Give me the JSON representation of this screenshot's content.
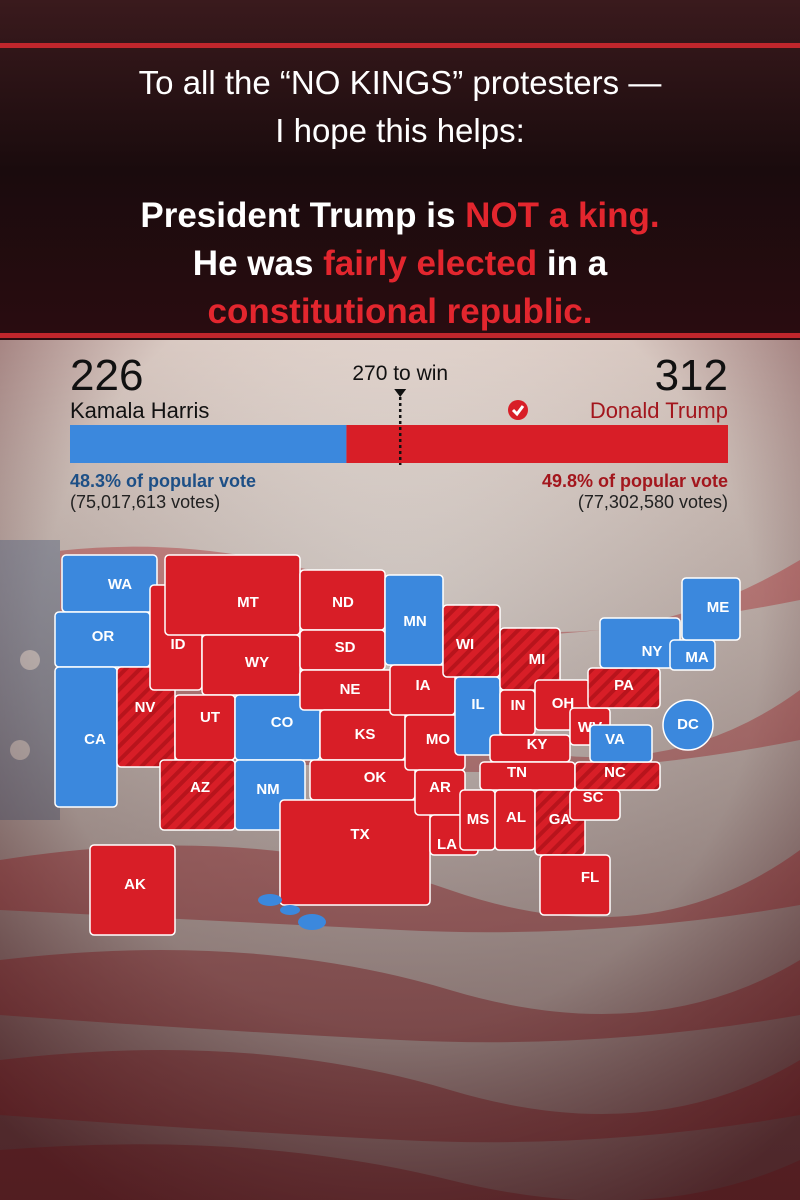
{
  "header": {
    "lines": [
      "To all the “NO KINGS” protesters —",
      "I hope this helps:"
    ]
  },
  "message": {
    "lines": [
      [
        {
          "text": "President Trump is ",
          "color": "#ffffff"
        },
        {
          "text": "NOT a king.",
          "color": "#e3262e"
        }
      ],
      [
        {
          "text": "He was ",
          "color": "#ffffff"
        },
        {
          "text": "fairly elected",
          "color": "#e3262e"
        },
        {
          "text": " in a",
          "color": "#ffffff"
        }
      ],
      [
        {
          "text": "constitutional republic.",
          "color": "#e3262e"
        }
      ]
    ]
  },
  "results": {
    "threshold": {
      "value": 270,
      "label": "270 to win"
    },
    "candidates": [
      {
        "name": "Kamala Harris",
        "electoral_votes": 226,
        "color": "#3b88dd",
        "text_color": "#1d4f86",
        "popular_vote": "48.3% of popular vote",
        "votes": "(75,017,613 votes)",
        "winner": false
      },
      {
        "name": "Donald Trump",
        "electoral_votes": 312,
        "color": "#d81e27",
        "text_color": "#a3161d",
        "popular_vote": "49.8% of popular vote",
        "votes": "(77,302,580 votes)",
        "winner": true
      }
    ]
  },
  "map": {
    "states": [
      {
        "label": "WA",
        "color": "#3b88dd"
      },
      {
        "label": "OR",
        "color": "#3b88dd"
      },
      {
        "label": "CA",
        "color": "#3b88dd"
      },
      {
        "label": "NV",
        "color": "#d81e27",
        "pattern": "stripes"
      },
      {
        "label": "ID",
        "color": "#d81e27"
      },
      {
        "label": "MT",
        "color": "#d81e27"
      },
      {
        "label": "WY",
        "color": "#d81e27"
      },
      {
        "label": "UT",
        "color": "#d81e27"
      },
      {
        "label": "CO",
        "color": "#3b88dd"
      },
      {
        "label": "AZ",
        "color": "#d81e27",
        "pattern": "stripes"
      },
      {
        "label": "NM",
        "color": "#3b88dd"
      },
      {
        "label": "ND",
        "color": "#d81e27"
      },
      {
        "label": "SD",
        "color": "#d81e27"
      },
      {
        "label": "NE",
        "color": "#d81e27"
      },
      {
        "label": "KS",
        "color": "#d81e27"
      },
      {
        "label": "OK",
        "color": "#d81e27"
      },
      {
        "label": "TX",
        "color": "#d81e27"
      },
      {
        "label": "MN",
        "color": "#3b88dd"
      },
      {
        "label": "IA",
        "color": "#d81e27"
      },
      {
        "label": "MO",
        "color": "#d81e27"
      },
      {
        "label": "AR",
        "color": "#d81e27"
      },
      {
        "label": "LA",
        "color": "#d81e27"
      },
      {
        "label": "WI",
        "color": "#d81e27",
        "pattern": "stripes"
      },
      {
        "label": "IL",
        "color": "#3b88dd"
      },
      {
        "label": "MI",
        "color": "#d81e27",
        "pattern": "stripes"
      },
      {
        "label": "IN",
        "color": "#d81e27"
      },
      {
        "label": "OH",
        "color": "#d81e27"
      },
      {
        "label": "KY",
        "color": "#d81e27"
      },
      {
        "label": "TN",
        "color": "#d81e27"
      },
      {
        "label": "MS",
        "color": "#d81e27"
      },
      {
        "label": "AL",
        "color": "#d81e27"
      },
      {
        "label": "GA",
        "color": "#d81e27",
        "pattern": "stripes"
      },
      {
        "label": "FL",
        "color": "#d81e27"
      },
      {
        "label": "SC",
        "color": "#d81e27"
      },
      {
        "label": "NC",
        "color": "#d81e27",
        "pattern": "stripes"
      },
      {
        "label": "WV",
        "color": "#d81e27"
      },
      {
        "label": "VA",
        "color": "#3b88dd"
      },
      {
        "label": "PA",
        "color": "#d81e27",
        "pattern": "stripes"
      },
      {
        "label": "NY",
        "color": "#3b88dd"
      },
      {
        "label": "MA",
        "color": "#3b88dd"
      },
      {
        "label": "ME",
        "color": "#3b88dd"
      },
      {
        "label": "DC",
        "color": "#3b88dd"
      },
      {
        "label": "AK",
        "color": "#d81e27"
      }
    ]
  }
}
